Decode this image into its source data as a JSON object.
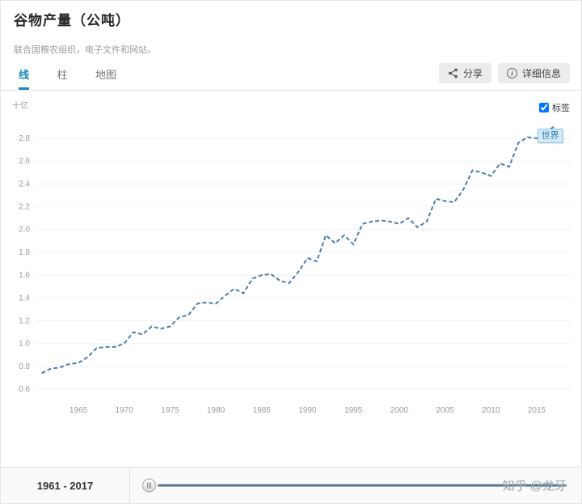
{
  "header": {
    "title": "谷物产量（公吨）",
    "subtitle": "联合国粮农组织，电子文件和网站。"
  },
  "tabs": [
    {
      "label": "线",
      "active": true
    },
    {
      "label": "柱",
      "active": false
    },
    {
      "label": "地图",
      "active": false
    }
  ],
  "toolbar": {
    "share_label": "分享",
    "details_label": "详细信息"
  },
  "chart_controls": {
    "labels_checkbox_label": "标签",
    "labels_checked": true,
    "series_tag": "世界"
  },
  "colors": {
    "accent": "#1c8ac0",
    "line": "#4a7fae",
    "chip_bg": "#d4eaf7",
    "chip_border": "#8fc1e0"
  },
  "chart_data": {
    "type": "line",
    "title": "谷物产量（公吨）",
    "unit_label": "十亿",
    "xlabel": "",
    "ylabel": "十亿",
    "xlim": [
      1961,
      2017
    ],
    "ylim": [
      0.55,
      3.0
    ],
    "grid": true,
    "legend_position": "end-of-line",
    "line_color": "#4a7fae",
    "line_style": "dashed",
    "x_ticks": [
      1965,
      1970,
      1975,
      1980,
      1985,
      1990,
      1995,
      2000,
      2005,
      2010,
      2015
    ],
    "y_ticks": [
      0.6,
      0.8,
      1.0,
      1.2,
      1.4,
      1.6,
      1.8,
      2.0,
      2.2,
      2.4,
      2.6,
      2.8
    ],
    "series": [
      {
        "name": "世界",
        "x": [
          1961,
          1962,
          1963,
          1964,
          1965,
          1966,
          1967,
          1968,
          1969,
          1970,
          1971,
          1972,
          1973,
          1974,
          1975,
          1976,
          1977,
          1978,
          1979,
          1980,
          1981,
          1982,
          1983,
          1984,
          1985,
          1986,
          1987,
          1988,
          1989,
          1990,
          1991,
          1992,
          1993,
          1994,
          1995,
          1996,
          1997,
          1998,
          1999,
          2000,
          2001,
          2002,
          2003,
          2004,
          2005,
          2006,
          2007,
          2008,
          2009,
          2010,
          2011,
          2012,
          2013,
          2014,
          2015,
          2016,
          2017
        ],
        "values": [
          0.74,
          0.78,
          0.79,
          0.82,
          0.83,
          0.88,
          0.96,
          0.97,
          0.97,
          1.0,
          1.1,
          1.08,
          1.15,
          1.13,
          1.15,
          1.23,
          1.25,
          1.35,
          1.36,
          1.35,
          1.42,
          1.48,
          1.44,
          1.57,
          1.6,
          1.61,
          1.55,
          1.53,
          1.63,
          1.75,
          1.72,
          1.95,
          1.88,
          1.95,
          1.87,
          2.05,
          2.07,
          2.08,
          2.07,
          2.05,
          2.1,
          2.02,
          2.07,
          2.27,
          2.25,
          2.24,
          2.35,
          2.52,
          2.5,
          2.47,
          2.58,
          2.55,
          2.76,
          2.81,
          2.8,
          2.85,
          2.91
        ]
      }
    ]
  },
  "timeline": {
    "range_label": "1961 - 2017"
  },
  "watermark": "知乎 @龙牙"
}
